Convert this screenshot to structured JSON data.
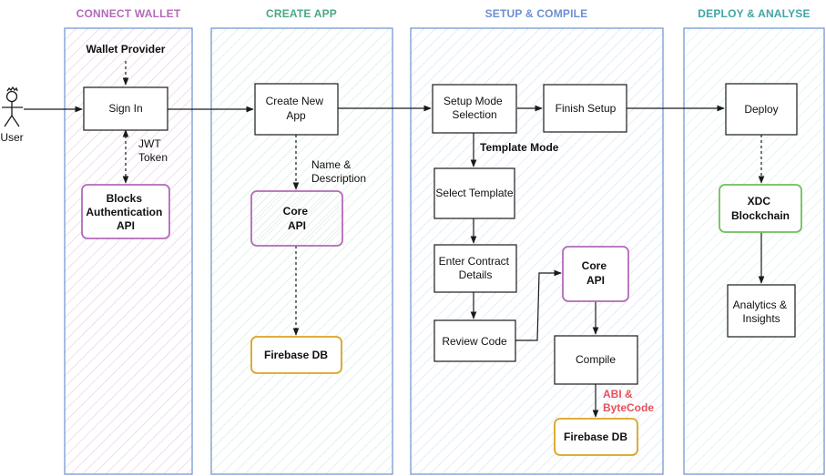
{
  "colors": {
    "purple": "#b36ab8",
    "green": "#48a882",
    "blue": "#6c8fd0",
    "teal": "#3fa6a4",
    "orange": "#d9a41f",
    "red": "#e4525a",
    "black": "#1a1a1a"
  },
  "lanes": {
    "connect_wallet": {
      "title": "CONNECT WALLET"
    },
    "create_app": {
      "title": "CREATE APP"
    },
    "setup_compile": {
      "title": "SETUP & COMPILE"
    },
    "deploy_analyse": {
      "title": "DEPLOY & ANALYSE"
    }
  },
  "actor": {
    "label": "User",
    "icon": "stick-figure-icon"
  },
  "nodes": {
    "wallet_provider": [
      "Wallet Provider"
    ],
    "sign_in": [
      "Sign In"
    ],
    "blocks_auth_api": [
      "Blocks",
      "Authentication",
      "API"
    ],
    "create_new_app": [
      "Create New",
      "App"
    ],
    "core_api_1": [
      "Core",
      "API"
    ],
    "firebase_db_1": [
      "Firebase DB"
    ],
    "setup_mode": [
      "Setup Mode",
      "Selection"
    ],
    "finish_setup": [
      "Finish Setup"
    ],
    "select_template": [
      "Select Template"
    ],
    "enter_contract": [
      "Enter Contract",
      "Details"
    ],
    "review_code": [
      "Review Code"
    ],
    "core_api_2": [
      "Core",
      "API"
    ],
    "compile": [
      "Compile"
    ],
    "firebase_db_2": [
      "Firebase DB"
    ],
    "deploy": [
      "Deploy"
    ],
    "xdc_blockchain": [
      "XDC",
      "Blockchain"
    ],
    "analytics": [
      "Analytics &",
      "Insights"
    ]
  },
  "edge_labels": {
    "jwt_token": [
      "JWT",
      "Token"
    ],
    "name_description": [
      "Name &",
      "Description"
    ],
    "template_mode": [
      "Template Mode"
    ],
    "abi_bytecode": [
      "ABI &",
      "ByteCode"
    ]
  }
}
